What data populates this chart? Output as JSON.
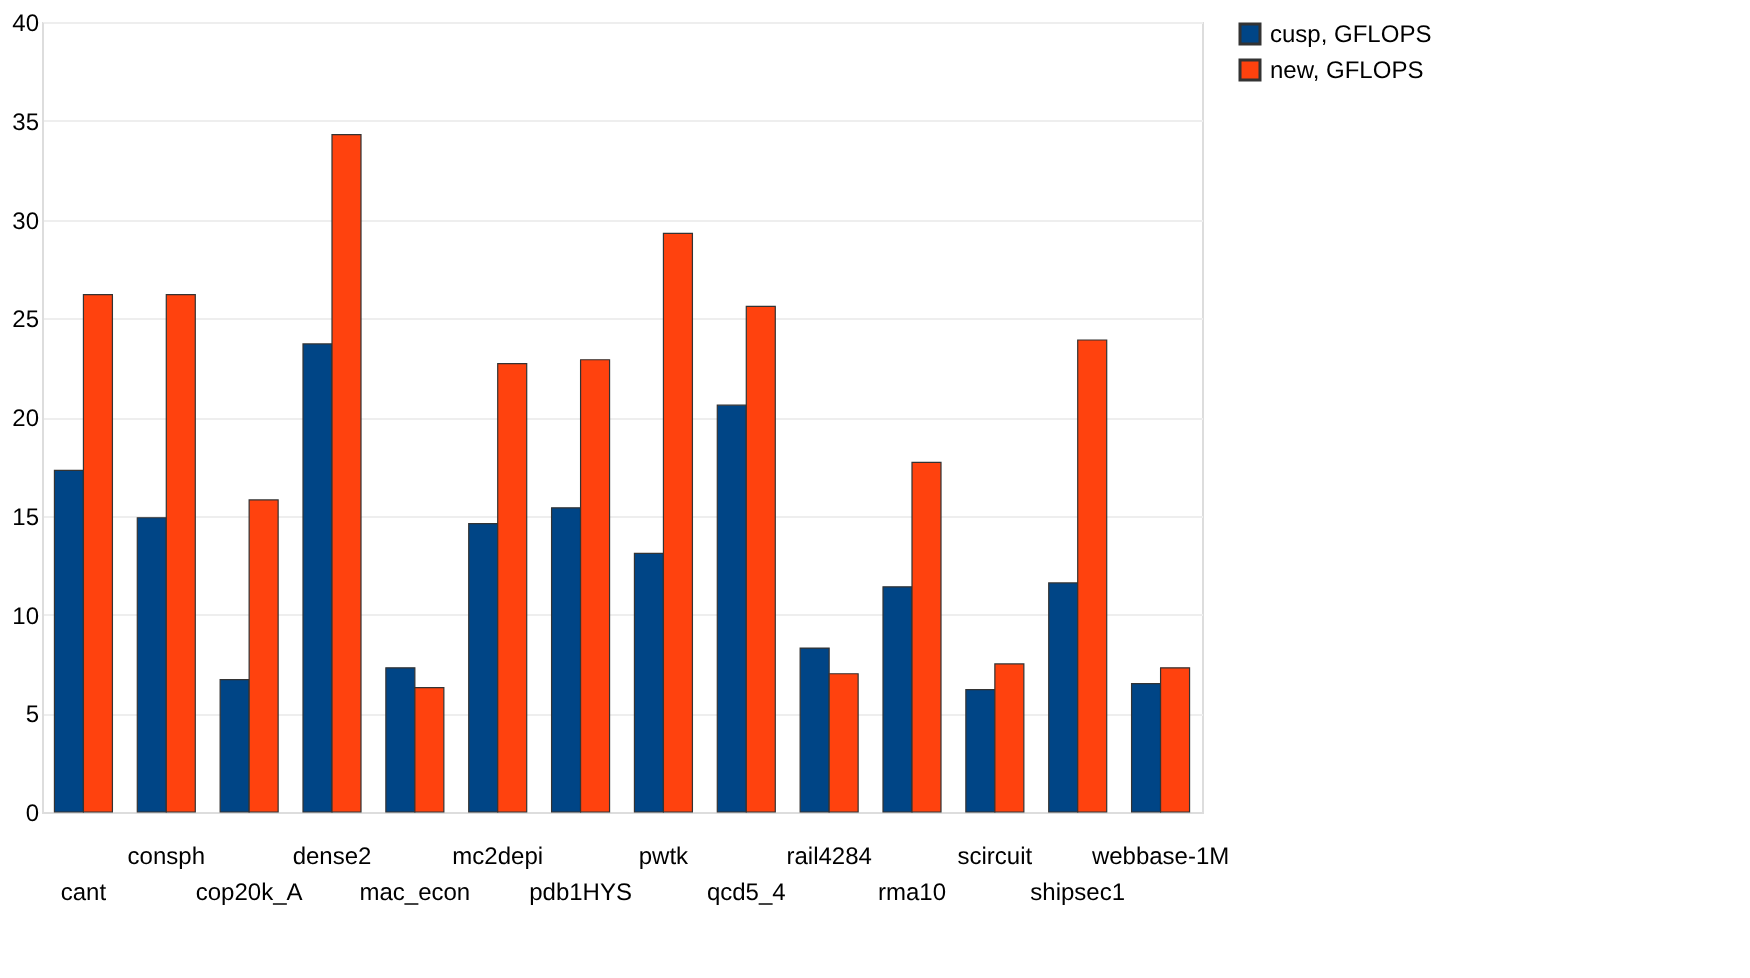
{
  "chart_data": {
    "type": "bar",
    "categories": [
      "cant",
      "consph",
      "cop20k_A",
      "dense2",
      "mac_econ",
      "mc2depi",
      "pdb1HYS",
      "pwtk",
      "qcd5_4",
      "rail4284",
      "rma10",
      "scircuit",
      "shipsec1",
      "webbase-1M"
    ],
    "series": [
      {
        "name": "cusp, GFLOPS",
        "color": "#004586",
        "values": [
          17.3,
          14.9,
          6.7,
          23.7,
          7.3,
          14.6,
          15.4,
          13.1,
          20.6,
          8.3,
          11.4,
          6.2,
          11.6,
          6.5
        ]
      },
      {
        "name": "new, GFLOPS",
        "color": "#ff420e",
        "values": [
          26.2,
          26.2,
          15.8,
          34.3,
          6.3,
          22.7,
          22.9,
          29.3,
          25.6,
          7.0,
          17.7,
          7.5,
          23.9,
          7.3
        ]
      }
    ],
    "ylim": [
      0,
      40
    ],
    "yticks": [
      0,
      5,
      10,
      15,
      20,
      25,
      30,
      35,
      40
    ],
    "grid": "y",
    "legend": "right"
  }
}
